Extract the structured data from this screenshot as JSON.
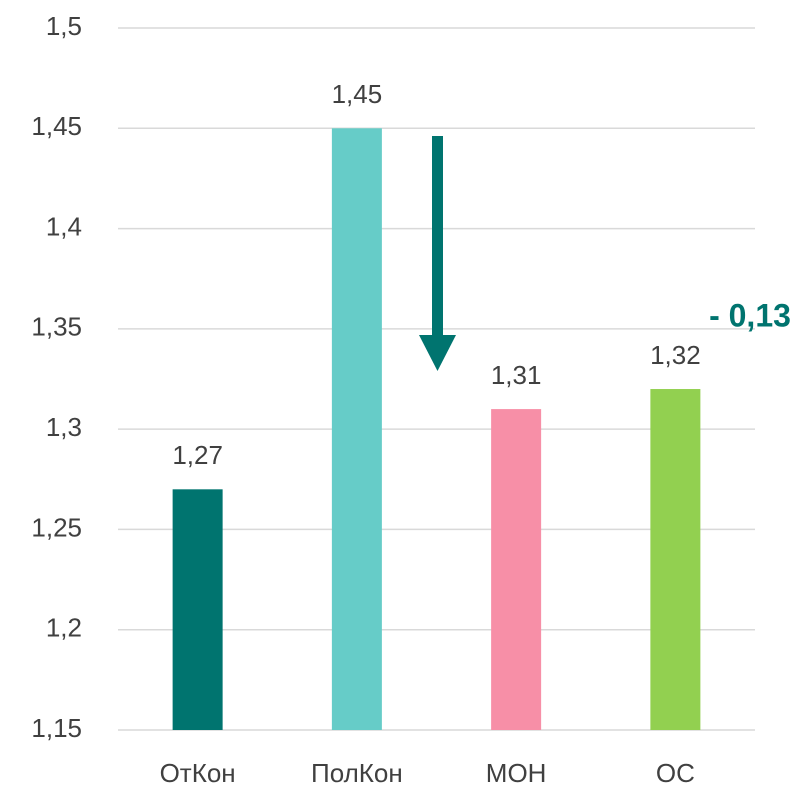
{
  "chart_data": {
    "type": "bar",
    "categories": [
      "ОтКон",
      "ПолКон",
      "МОН",
      "ОС"
    ],
    "values": [
      1.27,
      1.45,
      1.31,
      1.32
    ],
    "value_labels": [
      "1,27",
      "1,45",
      "1,31",
      "1,32"
    ],
    "colors": [
      "#00746f",
      "#66ccc8",
      "#f78fa7",
      "#92d050"
    ],
    "ylim": [
      1.15,
      1.5
    ],
    "yticks": [
      {
        "value": 1.15,
        "label": "1,15"
      },
      {
        "value": 1.2,
        "label": "1,2"
      },
      {
        "value": 1.25,
        "label": "1,25"
      },
      {
        "value": 1.3,
        "label": "1,3"
      },
      {
        "value": 1.35,
        "label": "1,35"
      },
      {
        "value": 1.4,
        "label": "1,4"
      },
      {
        "value": 1.45,
        "label": "1,45"
      },
      {
        "value": 1.5,
        "label": "1,5"
      }
    ],
    "grid": true,
    "annotation": "- 0,13"
  }
}
